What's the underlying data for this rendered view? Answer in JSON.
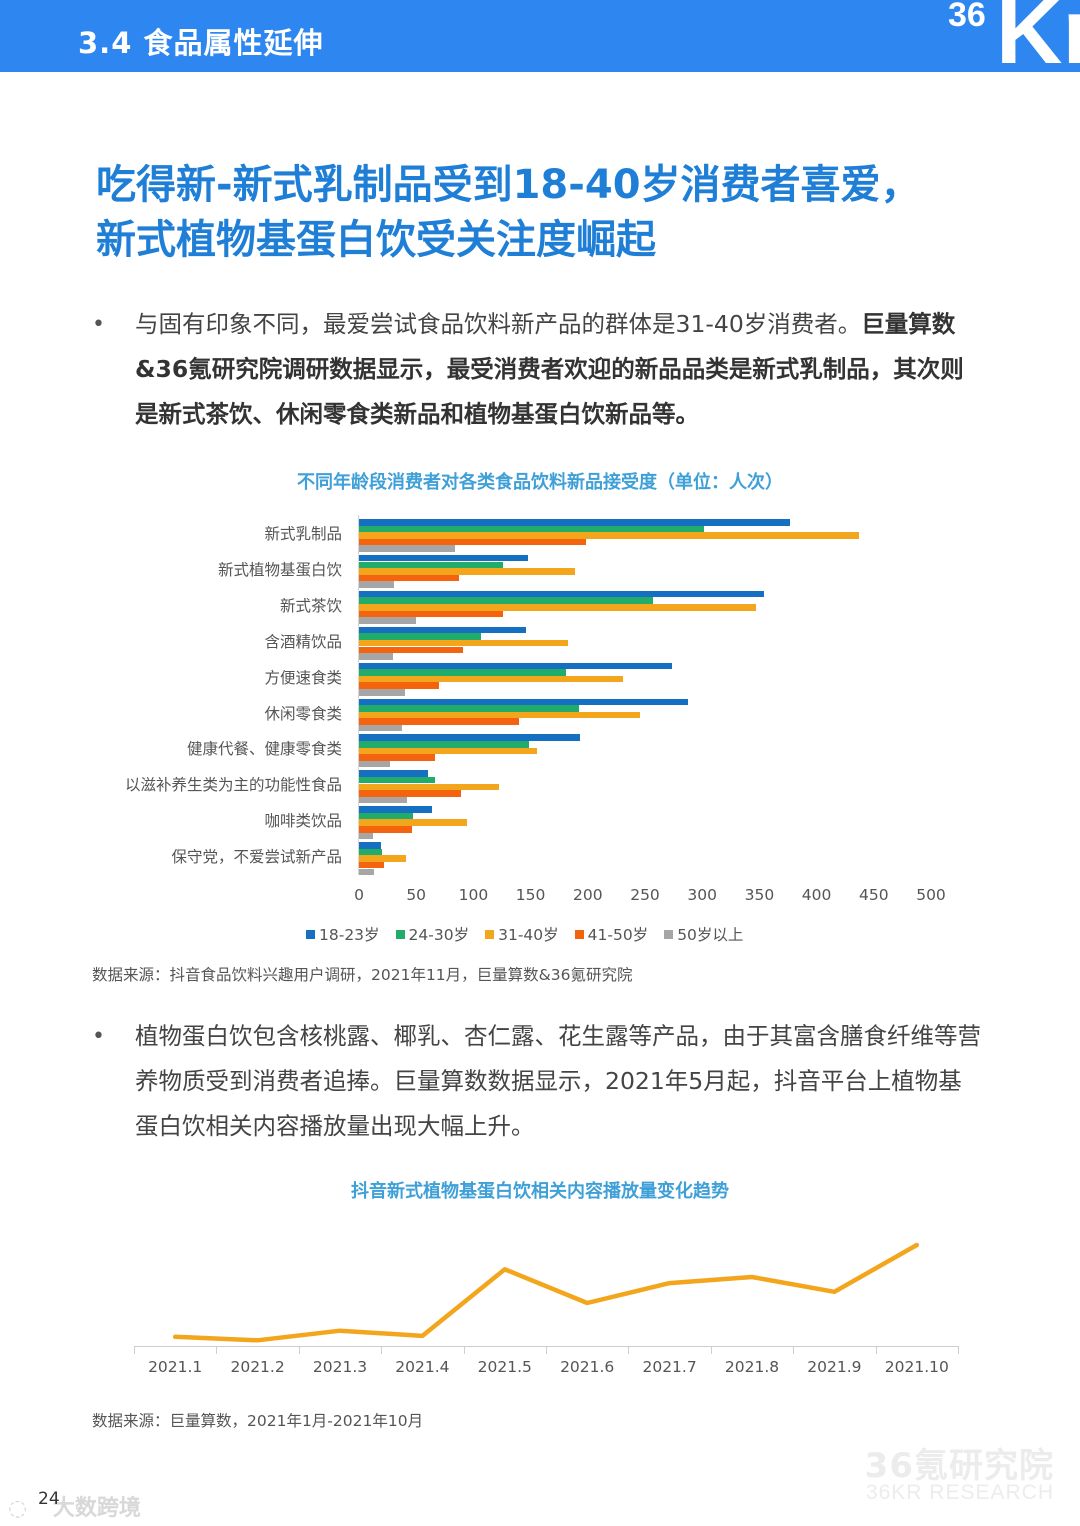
{
  "header": {
    "section_title": "3.4 食品属性延伸",
    "logo_text_small": "36",
    "logo_text_large": "Kr"
  },
  "headline": {
    "line1": "吃得新-新式乳制品受到18-40岁消费者喜爱，",
    "line2": "新式植物基蛋白饮受关注度崛起"
  },
  "bullets": [
    {
      "marker": "•",
      "text_normal": "与固有印象不同，最爱尝试食品饮料新产品的群体是31-40岁消费者。",
      "text_bold": "巨量算数&36氪研究院调研数据显示，最受消费者欢迎的新品品类是新式乳制品，其次则是新式茶饮、休闲零食类新品和植物基蛋白饮新品等。"
    },
    {
      "marker": "•",
      "text_normal": "植物蛋白饮包含核桃露、椰乳、杏仁露、花生露等产品，由于其富含膳食纤维等营养物质受到消费者追捧。巨量算数数据显示，2021年5月起，抖音平台上植物基蛋白饮相关内容播放量出现大幅上升。",
      "text_bold": ""
    }
  ],
  "colors": {
    "header_bg": "#2e86f0",
    "headline": "#1f7fd6",
    "chart_title": "#3fa0d8",
    "series_18_23": "#1570c2",
    "series_24_30": "#22ac6a",
    "series_31_40": "#f3a51c",
    "series_41_50": "#f4640e",
    "series_50_plus": "#a6a6a6",
    "line": "#f3a51c"
  },
  "chart_data": [
    {
      "type": "bar",
      "orientation": "horizontal",
      "title": "不同年龄段消费者对各类食品饮料新品接受度（单位：人次）",
      "categories": [
        "新式乳制品",
        "新式植物基蛋白饮",
        "新式茶饮",
        "含酒精饮品",
        "方便速食类",
        "休闲零食类",
        "健康代餐、健康零食类",
        "以滋补养生类为主的功能性食品",
        "咖啡类饮品",
        "保守党，不爱尝试新产品"
      ],
      "series": [
        {
          "name": "18-23岁",
          "values": [
            377,
            148,
            354,
            146,
            274,
            288,
            193,
            60,
            64,
            19
          ]
        },
        {
          "name": "24-30岁",
          "values": [
            302,
            126,
            257,
            107,
            181,
            192,
            149,
            66,
            47,
            20
          ]
        },
        {
          "name": "31-40岁",
          "values": [
            437,
            189,
            347,
            183,
            231,
            246,
            156,
            122,
            94,
            41
          ]
        },
        {
          "name": "41-50岁",
          "values": [
            198,
            87,
            126,
            91,
            70,
            140,
            66,
            89,
            46,
            22
          ]
        },
        {
          "name": "50岁以上",
          "values": [
            84,
            31,
            50,
            30,
            40,
            38,
            27,
            42,
            12,
            13
          ]
        }
      ],
      "x_ticks": [
        "0",
        "50",
        "100",
        "150",
        "200",
        "250",
        "300",
        "350",
        "400",
        "450",
        "500"
      ],
      "xlim": [
        0,
        500
      ],
      "xlabel": "",
      "ylabel": "",
      "grid": false,
      "legend_position": "bottom",
      "source": "数据来源：抖音食品饮料兴趣用户调研，2021年11月，巨量算数&36氪研究院"
    },
    {
      "type": "line",
      "title": "抖音新式植物基蛋白饮相关内容播放量变化趋势",
      "x": [
        "2021.1",
        "2021.2",
        "2021.3",
        "2021.4",
        "2021.5",
        "2021.6",
        "2021.7",
        "2021.8",
        "2021.9",
        "2021.10"
      ],
      "series": [
        {
          "name": "播放量",
          "values": [
            6,
            2,
            13,
            7,
            84,
            45,
            68,
            75,
            58,
            112
          ]
        }
      ],
      "y_unit": "relative (no y-axis shown)",
      "ylim": [
        0,
        120
      ],
      "grid": false,
      "legend_position": "none",
      "source": "数据来源：巨量算数，2021年1月-2021年10月"
    }
  ],
  "footer": {
    "page_number": "24",
    "watermark_cn": "36氪研究院",
    "watermark_en": "36KR RESEARCH",
    "overlay_watermark": "大数跨境"
  }
}
